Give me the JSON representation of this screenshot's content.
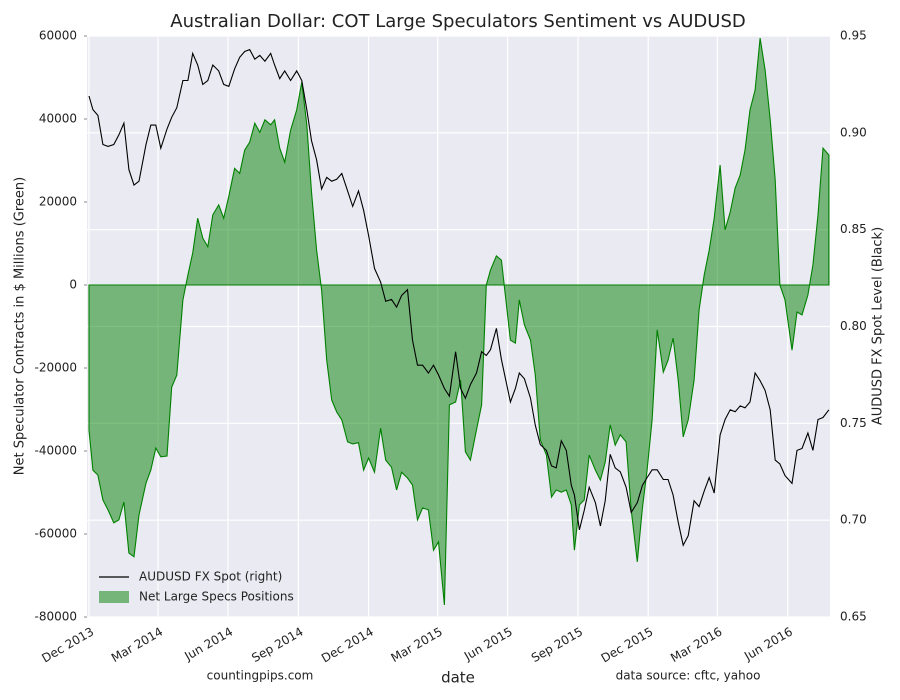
{
  "chart_data": {
    "type": "line",
    "title": "Australian Dollar: COT Large Speculators Sentiment vs AUDUSD",
    "xlabel": "date",
    "ylabel": "Net Speculator Contracts in $ Millions (Green)",
    "y2label": "AUDUSD FX Spot Level (Black)",
    "note_left": "countingpips.com",
    "note_right": "data source: cftc, yahoo",
    "grid": true,
    "legend": "lower left",
    "x": [
      2013.917,
      2013.931,
      2013.949,
      2013.967,
      2013.985,
      2014.006,
      2014.024,
      2014.042,
      2014.06,
      2014.078,
      2014.096,
      2014.121,
      2014.138,
      2014.156,
      2014.174,
      2014.196,
      2014.213,
      2014.231,
      2014.253,
      2014.271,
      2014.288,
      2014.306,
      2014.324,
      2014.342,
      2014.36,
      2014.381,
      2014.399,
      2014.417,
      2014.438,
      2014.456,
      2014.474,
      2014.492,
      2014.51,
      2014.528,
      2014.546,
      2014.567,
      2014.581,
      2014.599,
      2014.617,
      2014.638,
      2014.66,
      2014.678,
      2014.696,
      2014.713,
      2014.731,
      2014.749,
      2014.767,
      2014.785,
      2014.803,
      2014.821,
      2014.842,
      2014.86,
      2014.881,
      2014.899,
      2014.917,
      2014.938,
      2014.96,
      2014.978,
      2014.999,
      2015.017,
      2015.035,
      2015.056,
      2015.074,
      2015.092,
      2015.11,
      2015.131,
      2015.149,
      2015.167,
      2015.188,
      2015.206,
      2015.228,
      2015.246,
      2015.263,
      2015.281,
      2015.303,
      2015.321,
      2015.338,
      2015.353,
      2015.374,
      2015.392,
      2015.424,
      2015.442,
      2015.456,
      2015.474,
      2015.496,
      2015.513,
      2015.531,
      2015.553,
      2015.571,
      2015.588,
      2015.606,
      2015.624,
      2015.642,
      2015.653,
      2015.671,
      2015.688,
      2015.706,
      2015.728,
      2015.746,
      2015.763,
      2015.781,
      2015.799,
      2015.817,
      2015.838,
      2015.856,
      2015.878,
      2015.896,
      2015.913,
      2015.931,
      2015.949,
      2015.971,
      2015.988,
      2016.006,
      2016.024,
      2016.042,
      2016.06,
      2016.081,
      2016.099,
      2016.117,
      2016.135,
      2016.153,
      2016.174,
      2016.192,
      2016.21,
      2016.228,
      2016.246,
      2016.263,
      2016.281,
      2016.299,
      2016.317,
      2016.335,
      2016.353,
      2016.371,
      2016.388,
      2016.406,
      2016.431,
      2016.449,
      2016.467,
      2016.488,
      2016.506,
      2016.524,
      2016.542,
      2016.563
    ],
    "series": [
      {
        "name": "AUDUSD FX Spot (right)",
        "color": "#000000",
        "axis": "y2",
        "values": [
          0.919,
          0.912,
          0.909,
          0.894,
          0.893,
          0.894,
          0.899,
          0.905,
          0.881,
          0.873,
          0.875,
          0.894,
          0.904,
          0.904,
          0.892,
          0.902,
          0.908,
          0.913,
          0.927,
          0.927,
          0.941,
          0.935,
          0.925,
          0.927,
          0.935,
          0.932,
          0.925,
          0.924,
          0.933,
          0.939,
          0.942,
          0.943,
          0.938,
          0.94,
          0.937,
          0.941,
          0.935,
          0.928,
          0.932,
          0.927,
          0.932,
          0.927,
          0.912,
          0.896,
          0.886,
          0.871,
          0.877,
          0.875,
          0.876,
          0.879,
          0.87,
          0.862,
          0.87,
          0.86,
          0.847,
          0.83,
          0.823,
          0.813,
          0.814,
          0.81,
          0.816,
          0.819,
          0.793,
          0.78,
          0.78,
          0.776,
          0.78,
          0.775,
          0.768,
          0.764,
          0.787,
          0.768,
          0.763,
          0.77,
          0.776,
          0.787,
          0.785,
          0.788,
          0.799,
          0.783,
          0.761,
          0.768,
          0.776,
          0.773,
          0.763,
          0.749,
          0.739,
          0.736,
          0.728,
          0.727,
          0.741,
          0.736,
          0.718,
          0.713,
          0.695,
          0.705,
          0.717,
          0.709,
          0.697,
          0.71,
          0.734,
          0.727,
          0.725,
          0.717,
          0.704,
          0.709,
          0.718,
          0.722,
          0.726,
          0.726,
          0.721,
          0.721,
          0.713,
          0.699,
          0.687,
          0.692,
          0.71,
          0.707,
          0.715,
          0.722,
          0.714,
          0.744,
          0.752,
          0.757,
          0.756,
          0.759,
          0.758,
          0.761,
          0.776,
          0.772,
          0.767,
          0.757,
          0.731,
          0.729,
          0.723,
          0.719,
          0.736,
          0.737,
          0.745,
          0.736,
          0.752,
          0.753,
          0.757
        ]
      },
      {
        "name": "Net Large Specs Positions",
        "color": "#008000",
        "type": "area",
        "values": [
          -35000,
          -44600,
          -45800,
          -51800,
          -54200,
          -57300,
          -56600,
          -52300,
          -64600,
          -65500,
          -55400,
          -47700,
          -44600,
          -39300,
          -41400,
          -41200,
          -24600,
          -21700,
          -3600,
          2400,
          7700,
          16100,
          11300,
          9200,
          16900,
          19300,
          16100,
          21400,
          28100,
          26900,
          32500,
          34400,
          39000,
          36800,
          39800,
          38600,
          39800,
          33000,
          29600,
          37300,
          42200,
          48900,
          38600,
          22400,
          8400,
          -1200,
          -18100,
          -27700,
          -30600,
          -32500,
          -37800,
          -38300,
          -38000,
          -44600,
          -41700,
          -45100,
          -34500,
          -42200,
          -43900,
          -49400,
          -45100,
          -46500,
          -48200,
          -56600,
          -53700,
          -54200,
          -63900,
          -61900,
          -77100,
          -28900,
          -28200,
          -22900,
          -40200,
          -42200,
          -34900,
          -28900,
          0,
          3600,
          7000,
          6000,
          -13300,
          -14000,
          -3600,
          -9600,
          -13300,
          -21700,
          -37300,
          -41000,
          -51100,
          -49400,
          -49900,
          -49400,
          -53000,
          -63900,
          -53000,
          -51800,
          -41000,
          -44600,
          -47000,
          -42700,
          -33700,
          -38600,
          -36100,
          -37800,
          -54200,
          -66700,
          -53700,
          -44600,
          -32500,
          -10800,
          -21000,
          -18100,
          -12800,
          -22900,
          -36600,
          -32500,
          -22900,
          -6000,
          2400,
          8400,
          16100,
          28900,
          13300,
          17600,
          23400,
          26500,
          32500,
          42200,
          47000,
          59500,
          51800,
          39800,
          25300,
          0,
          -3600,
          -15700,
          -6500,
          -7200,
          -2400,
          4800,
          16900,
          33000,
          31300
        ]
      }
    ],
    "xlim": [
      2013.91,
      2016.567
    ],
    "xticks": [
      {
        "value": 2013.917,
        "label": "Dec 2013"
      },
      {
        "value": 2014.164,
        "label": "Mar 2014"
      },
      {
        "value": 2014.414,
        "label": "Jun 2014"
      },
      {
        "value": 2014.666,
        "label": "Sep 2014"
      },
      {
        "value": 2014.917,
        "label": "Dec 2014"
      },
      {
        "value": 2015.164,
        "label": "Mar 2015"
      },
      {
        "value": 2015.414,
        "label": "Jun 2015"
      },
      {
        "value": 2015.666,
        "label": "Sep 2015"
      },
      {
        "value": 2015.917,
        "label": "Dec 2015"
      },
      {
        "value": 2016.164,
        "label": "Mar 2016"
      },
      {
        "value": 2016.416,
        "label": "Jun 2016"
      }
    ],
    "ylim": [
      -80000,
      60000
    ],
    "yticks": [
      -80000,
      -60000,
      -40000,
      -20000,
      0,
      20000,
      40000,
      60000
    ],
    "y2lim": [
      0.65,
      0.95
    ],
    "y2ticks": [
      0.65,
      {
        "value": 0.7,
        "label": "0.70"
      },
      0.75,
      {
        "value": 0.8,
        "label": "0.80"
      },
      0.85,
      {
        "value": 0.9,
        "label": "0.90"
      },
      0.95
    ]
  }
}
